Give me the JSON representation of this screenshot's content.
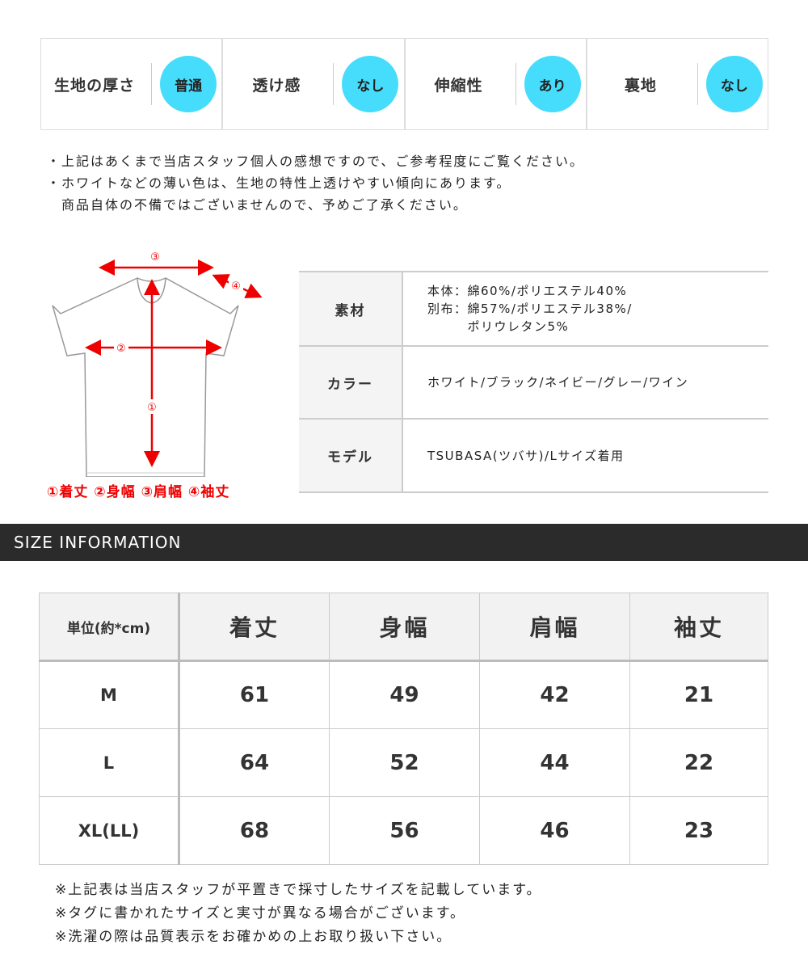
{
  "attributes": [
    {
      "label": "生地の厚さ",
      "value": "普通"
    },
    {
      "label": "透け感",
      "value": "なし"
    },
    {
      "label": "伸縮性",
      "value": "あり"
    },
    {
      "label": "裏地",
      "value": "なし"
    }
  ],
  "accent_color": "#46dcfc",
  "notes": [
    "・上記はあくまで当店スタッフ個人の感想ですので、ご参考程度にご覧ください。",
    "・ホワイトなどの薄い色は、生地の特性上透けやすい傾向にあります。",
    "商品自体の不備ではございませんので、予めご了承ください。"
  ],
  "diagram": {
    "markers": [
      "③",
      "④",
      "②",
      "①"
    ],
    "legend": "①着丈 ②身幅 ③肩幅 ④袖丈"
  },
  "spec": [
    {
      "label": "素材",
      "lines": [
        "本体：綿60%/ポリエステル40%",
        "別布：綿57%/ポリエステル38%/",
        "　　　ポリウレタン5%"
      ]
    },
    {
      "label": "カラー",
      "lines": [
        "ホワイト/ブラック/ネイビー/グレー/ワイン"
      ]
    },
    {
      "label": "モデル",
      "lines": [
        "TSUBASA(ツバサ)/Lサイズ着用"
      ]
    }
  ],
  "section_title": "SIZE INFORMATION",
  "size_table": {
    "headers": [
      "単位(約*cm)",
      "着丈",
      "身幅",
      "肩幅",
      "袖丈"
    ],
    "rows": [
      [
        "M",
        "61",
        "49",
        "42",
        "21"
      ],
      [
        "L",
        "64",
        "52",
        "44",
        "22"
      ],
      [
        "XL(LL)",
        "68",
        "56",
        "46",
        "23"
      ]
    ]
  },
  "footnotes": [
    "※上記表は当店スタッフが平置きで採寸したサイズを記載しています。",
    "※タグに書かれたサイズと実寸が異なる場合がございます。",
    "※洗濯の際は品質表示をお確かめの上お取り扱い下さい。"
  ]
}
